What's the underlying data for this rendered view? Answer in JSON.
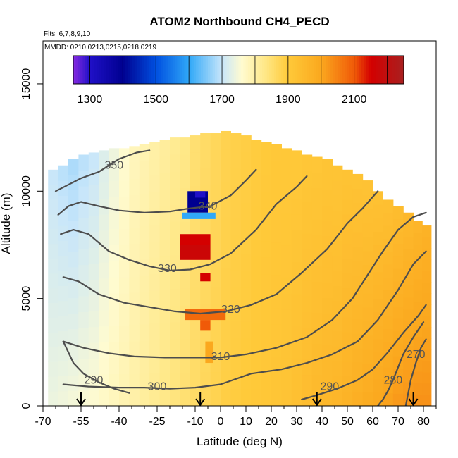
{
  "chart_data": {
    "type": "heatmap",
    "title": "ATOM2 Northbound CH4_PECD",
    "flights_note": "Flts: 6,7,8,9,10",
    "dates_note": "MMDD: 0210,0213,0215,0218,0219",
    "xlabel": "Latitude (deg N)",
    "ylabel": "Altitude (m)",
    "xlim": [
      -70,
      85
    ],
    "ylim": [
      0,
      17000
    ],
    "x_ticks": [
      -70,
      -55,
      -40,
      -25,
      -10,
      0,
      10,
      20,
      30,
      40,
      50,
      60,
      70,
      80
    ],
    "x_tick_labels": [
      "-70",
      "-55",
      "-40",
      "-25",
      "-10",
      "0",
      "10",
      "20",
      "30",
      "40",
      "50",
      "60",
      "70",
      "80"
    ],
    "x_minor_ticks": [
      -65,
      -60,
      -50,
      -45,
      -35,
      -30,
      -20,
      -15,
      -5,
      5,
      15,
      25,
      35,
      45,
      55,
      65,
      75,
      85
    ],
    "y_ticks": [
      0,
      5000,
      10000,
      15000
    ],
    "y_tick_labels": [
      "0",
      "5000",
      "10000",
      "15000"
    ],
    "colorbar": {
      "boundaries": [
        1250,
        1300,
        1400,
        1500,
        1600,
        1700,
        1800,
        1900,
        2000,
        2100,
        2200,
        2250
      ],
      "tick_values": [
        1300,
        1500,
        1700,
        1900,
        2100
      ],
      "tick_labels": [
        "1300",
        "1500",
        "1700",
        "1900",
        "2100"
      ],
      "stops": [
        {
          "v": 1250,
          "c": "#8a2be2"
        },
        {
          "v": 1300,
          "c": "#2010c8"
        },
        {
          "v": 1400,
          "c": "#000090"
        },
        {
          "v": 1500,
          "c": "#0050e0"
        },
        {
          "v": 1600,
          "c": "#30a8f8"
        },
        {
          "v": 1700,
          "c": "#c8e6fa"
        },
        {
          "v": 1760,
          "c": "#fffbd0"
        },
        {
          "v": 1830,
          "c": "#ffe888"
        },
        {
          "v": 1900,
          "c": "#ffca3a"
        },
        {
          "v": 2000,
          "c": "#fba81e"
        },
        {
          "v": 2100,
          "c": "#f05a08"
        },
        {
          "v": 2150,
          "c": "#d40000"
        },
        {
          "v": 2250,
          "c": "#a82020"
        }
      ]
    },
    "ch4_profiles": [
      {
        "lat": -66,
        "bottom": 0,
        "top": 11000,
        "base": 1740,
        "top_value": 1700
      },
      {
        "lat": -62,
        "bottom": 0,
        "top": 11200,
        "base": 1745,
        "top_value": 1690
      },
      {
        "lat": -58,
        "bottom": 0,
        "top": 11500,
        "base": 1750,
        "top_value": 1680
      },
      {
        "lat": -54,
        "bottom": 0,
        "top": 11700,
        "base": 1755,
        "top_value": 1690
      },
      {
        "lat": -50,
        "bottom": 0,
        "top": 11800,
        "base": 1760,
        "top_value": 1700
      },
      {
        "lat": -46,
        "bottom": 0,
        "top": 11900,
        "base": 1770,
        "top_value": 1720
      },
      {
        "lat": -42,
        "bottom": 0,
        "top": 12000,
        "base": 1780,
        "top_value": 1740
      },
      {
        "lat": -38,
        "bottom": 0,
        "top": 12000,
        "base": 1790,
        "top_value": 1760
      },
      {
        "lat": -34,
        "bottom": 0,
        "top": 12100,
        "base": 1800,
        "top_value": 1780
      },
      {
        "lat": -30,
        "bottom": 0,
        "top": 12200,
        "base": 1810,
        "top_value": 1790
      },
      {
        "lat": -26,
        "bottom": 0,
        "top": 12300,
        "base": 1820,
        "top_value": 1800
      },
      {
        "lat": -22,
        "bottom": 0,
        "top": 12400,
        "base": 1830,
        "top_value": 1810
      },
      {
        "lat": -18,
        "bottom": 0,
        "top": 12500,
        "base": 1840,
        "top_value": 1820
      },
      {
        "lat": -14,
        "bottom": 0,
        "top": 12500,
        "base": 1850,
        "top_value": 1830
      },
      {
        "lat": -10,
        "bottom": 0,
        "top": 12600,
        "base": 1860,
        "top_value": 1850
      },
      {
        "lat": -6,
        "bottom": 0,
        "top": 12700,
        "base": 1870,
        "top_value": 1860
      },
      {
        "lat": -2,
        "bottom": 0,
        "top": 12700,
        "base": 1880,
        "top_value": 1870
      },
      {
        "lat": 2,
        "bottom": 0,
        "top": 12800,
        "base": 1890,
        "top_value": 1880
      },
      {
        "lat": 6,
        "bottom": 0,
        "top": 12700,
        "base": 1895,
        "top_value": 1885
      },
      {
        "lat": 10,
        "bottom": 0,
        "top": 12600,
        "base": 1900,
        "top_value": 1890
      },
      {
        "lat": 14,
        "bottom": 0,
        "top": 12400,
        "base": 1905,
        "top_value": 1895
      },
      {
        "lat": 18,
        "bottom": 0,
        "top": 12300,
        "base": 1910,
        "top_value": 1900
      },
      {
        "lat": 22,
        "bottom": 0,
        "top": 12200,
        "base": 1915,
        "top_value": 1905
      },
      {
        "lat": 26,
        "bottom": 0,
        "top": 12000,
        "base": 1920,
        "top_value": 1905
      },
      {
        "lat": 30,
        "bottom": 0,
        "top": 11900,
        "base": 1930,
        "top_value": 1905
      },
      {
        "lat": 34,
        "bottom": 0,
        "top": 11700,
        "base": 1940,
        "top_value": 1910
      },
      {
        "lat": 38,
        "bottom": 0,
        "top": 11600,
        "base": 1950,
        "top_value": 1910
      },
      {
        "lat": 42,
        "bottom": 0,
        "top": 11500,
        "base": 1955,
        "top_value": 1915
      },
      {
        "lat": 46,
        "bottom": 0,
        "top": 11200,
        "base": 1960,
        "top_value": 1915
      },
      {
        "lat": 50,
        "bottom": 0,
        "top": 11000,
        "base": 1970,
        "top_value": 1920
      },
      {
        "lat": 54,
        "bottom": 0,
        "top": 10800,
        "base": 1980,
        "top_value": 1920
      },
      {
        "lat": 58,
        "bottom": 0,
        "top": 10500,
        "base": 1990,
        "top_value": 1920
      },
      {
        "lat": 62,
        "bottom": 0,
        "top": 10000,
        "base": 2000,
        "top_value": 1925
      },
      {
        "lat": 66,
        "bottom": 0,
        "top": 9600,
        "base": 2010,
        "top_value": 1930
      },
      {
        "lat": 70,
        "bottom": 0,
        "top": 9300,
        "base": 2020,
        "top_value": 1940
      },
      {
        "lat": 74,
        "bottom": 0,
        "top": 9000,
        "base": 2025,
        "top_value": 1950
      },
      {
        "lat": 78,
        "bottom": 0,
        "top": 8600,
        "base": 2030,
        "top_value": 1960
      },
      {
        "lat": 81,
        "bottom": 0,
        "top": 8400,
        "base": 2030,
        "top_value": 1970
      }
    ],
    "anomalies": [
      {
        "lat_min": -13,
        "lat_max": -5,
        "alt_min": 9000,
        "alt_max": 10000,
        "value": 1400
      },
      {
        "lat_min": -15,
        "lat_max": -2,
        "alt_min": 8700,
        "alt_max": 9000,
        "value": 1600
      },
      {
        "lat_min": -10,
        "lat_max": -6,
        "alt_min": 9700,
        "alt_max": 10000,
        "value": 1300
      },
      {
        "lat_min": -16,
        "lat_max": -4,
        "alt_min": 7500,
        "alt_max": 8000,
        "value": 2150
      },
      {
        "lat_min": -16,
        "lat_max": -4,
        "alt_min": 6800,
        "alt_max": 7500,
        "value": 2170
      },
      {
        "lat_min": -8,
        "lat_max": -4,
        "alt_min": 5800,
        "alt_max": 6200,
        "value": 2150
      },
      {
        "lat_min": -14,
        "lat_max": 2,
        "alt_min": 4000,
        "alt_max": 4500,
        "value": 2080
      },
      {
        "lat_min": -8,
        "lat_max": -4,
        "alt_min": 3500,
        "alt_max": 4000,
        "value": 2100
      },
      {
        "lat_min": -6,
        "lat_max": -3,
        "alt_min": 2000,
        "alt_max": 3000,
        "value": 2000
      }
    ],
    "theta_contours": [
      {
        "label": "350",
        "label_lat": -42,
        "label_alt": 11200,
        "points": [
          [
            -65,
            10000
          ],
          [
            -60,
            10300
          ],
          [
            -55,
            10600
          ],
          [
            -48,
            10900
          ],
          [
            -40,
            11500
          ],
          [
            -33,
            11800
          ],
          [
            -28,
            11900
          ]
        ]
      },
      {
        "label": "340",
        "label_lat": -5,
        "label_alt": 9300,
        "points": [
          [
            -64,
            8900
          ],
          [
            -60,
            9300
          ],
          [
            -55,
            9500
          ],
          [
            -48,
            9300
          ],
          [
            -40,
            9100
          ],
          [
            -30,
            9000
          ],
          [
            -20,
            9050
          ],
          [
            -12,
            9200
          ],
          [
            -4,
            9300
          ],
          [
            4,
            9800
          ],
          [
            10,
            10500
          ],
          [
            14,
            11000
          ]
        ]
      },
      {
        "label": "330",
        "label_lat": -21,
        "label_alt": 6400,
        "points": [
          [
            -63,
            8000
          ],
          [
            -58,
            8200
          ],
          [
            -52,
            8000
          ],
          [
            -44,
            7200
          ],
          [
            -36,
            6800
          ],
          [
            -28,
            6500
          ],
          [
            -20,
            6300
          ],
          [
            -12,
            6350
          ],
          [
            -4,
            6600
          ],
          [
            4,
            7100
          ],
          [
            14,
            8200
          ],
          [
            22,
            9400
          ],
          [
            30,
            10200
          ],
          [
            34,
            10700
          ]
        ]
      },
      {
        "label": "320",
        "label_lat": 4,
        "label_alt": 4500,
        "points": [
          [
            -62,
            6000
          ],
          [
            -56,
            5800
          ],
          [
            -48,
            5200
          ],
          [
            -38,
            4800
          ],
          [
            -28,
            4600
          ],
          [
            -18,
            4400
          ],
          [
            -8,
            4300
          ],
          [
            2,
            4400
          ],
          [
            12,
            4700
          ],
          [
            22,
            5200
          ],
          [
            32,
            6200
          ],
          [
            42,
            7300
          ],
          [
            50,
            8500
          ],
          [
            56,
            9200
          ],
          [
            62,
            10000
          ]
        ]
      },
      {
        "label": "310",
        "label_lat": 0,
        "label_alt": 2300,
        "points": [
          [
            -62,
            3000
          ],
          [
            -54,
            2700
          ],
          [
            -44,
            2450
          ],
          [
            -34,
            2300
          ],
          [
            -22,
            2250
          ],
          [
            -10,
            2250
          ],
          [
            0,
            2250
          ],
          [
            10,
            2400
          ],
          [
            22,
            2700
          ],
          [
            34,
            3200
          ],
          [
            44,
            4000
          ],
          [
            52,
            5000
          ],
          [
            58,
            6100
          ],
          [
            64,
            7200
          ],
          [
            70,
            8200
          ],
          [
            76,
            8800
          ],
          [
            81,
            9000
          ]
        ]
      },
      {
        "label": "300",
        "label_lat": -25,
        "label_alt": 900,
        "points": [
          [
            -62,
            1000
          ],
          [
            -52,
            900
          ],
          [
            -40,
            850
          ],
          [
            -30,
            850
          ],
          [
            -20,
            800
          ],
          [
            -10,
            850
          ],
          [
            0,
            1000
          ],
          [
            12,
            1500
          ],
          [
            24,
            1700
          ],
          [
            34,
            2000
          ],
          [
            44,
            2400
          ],
          [
            54,
            3000
          ],
          [
            62,
            4000
          ],
          [
            70,
            5400
          ],
          [
            76,
            6600
          ],
          [
            81,
            7200
          ]
        ]
      },
      {
        "label": "290",
        "label_lat": -50,
        "label_alt": 1200,
        "points": [
          [
            -62,
            3000
          ],
          [
            -58,
            2000
          ],
          [
            -54,
            1500
          ],
          [
            -48,
            1100
          ],
          [
            -42,
            800
          ],
          [
            -36,
            600
          ]
        ]
      },
      {
        "label": "290",
        "label_lat": 43,
        "label_alt": 900,
        "points": [
          [
            32,
            300
          ],
          [
            38,
            500
          ],
          [
            46,
            800
          ],
          [
            54,
            1200
          ],
          [
            60,
            1700
          ],
          [
            66,
            2500
          ],
          [
            72,
            3400
          ],
          [
            78,
            4200
          ],
          [
            81,
            4700
          ]
        ]
      },
      {
        "label": "280",
        "label_lat": 68,
        "label_alt": 1200,
        "points": [
          [
            62,
            0
          ],
          [
            64,
            300
          ],
          [
            66,
            700
          ],
          [
            68,
            1200
          ],
          [
            70,
            1800
          ],
          [
            72,
            2400
          ],
          [
            76,
            3200
          ],
          [
            80,
            3900
          ]
        ]
      },
      {
        "label": "270",
        "label_lat": 77,
        "label_alt": 2400,
        "points": [
          [
            73,
            0
          ],
          [
            74,
            600
          ],
          [
            75,
            1200
          ],
          [
            77,
            2000
          ],
          [
            79,
            2700
          ],
          [
            81,
            3100
          ]
        ]
      }
    ],
    "flight_arrows_lat": [
      -55,
      -8,
      38,
      76
    ]
  }
}
